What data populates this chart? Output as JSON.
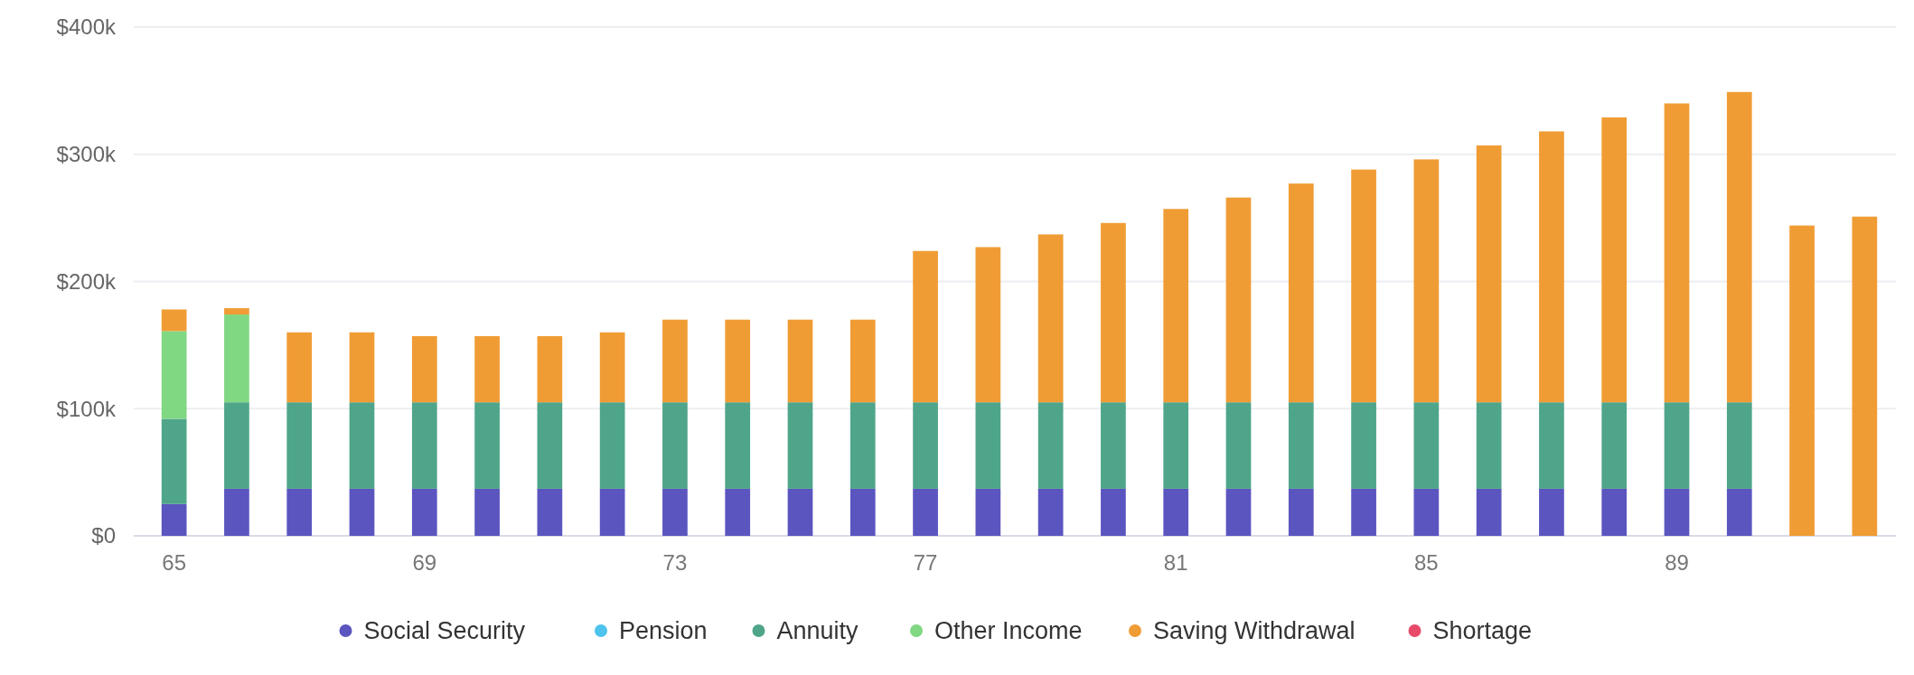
{
  "chart_data": {
    "type": "bar",
    "stacked": true,
    "grid": "y",
    "legend": "bottom",
    "marker": "circle",
    "categories": [
      "65",
      null,
      null,
      null,
      "69",
      null,
      null,
      null,
      "73",
      null,
      null,
      null,
      "77",
      null,
      null,
      null,
      "81",
      null,
      null,
      null,
      "85",
      null,
      null,
      null,
      "89",
      null,
      null,
      null
    ],
    "ylim": [
      0,
      400000
    ],
    "yticks": [
      {
        "value": 0,
        "label": "$0"
      },
      {
        "value": 100000,
        "label": "$100k"
      },
      {
        "value": 200000,
        "label": "$200k"
      },
      {
        "value": 300000,
        "label": "$300k"
      },
      {
        "value": 400000,
        "label": "$400k"
      }
    ],
    "series": [
      {
        "name": "Social Security",
        "color": "#5b55c0",
        "values": [
          25000,
          37000,
          37000,
          37000,
          37000,
          37000,
          37000,
          37000,
          37000,
          37000,
          37000,
          37000,
          37000,
          37000,
          37000,
          37000,
          37000,
          37000,
          37000,
          37000,
          37000,
          37000,
          37000,
          37000,
          37000,
          37000,
          0,
          0
        ]
      },
      {
        "name": "Pension",
        "color": "#4dc3ee",
        "values": [
          0,
          0,
          0,
          0,
          0,
          0,
          0,
          0,
          0,
          0,
          0,
          0,
          0,
          0,
          0,
          0,
          0,
          0,
          0,
          0,
          0,
          0,
          0,
          0,
          0,
          0,
          0,
          0
        ]
      },
      {
        "name": "Annuity",
        "color": "#4fa58a",
        "values": [
          67000,
          68000,
          68000,
          68000,
          68000,
          68000,
          68000,
          68000,
          68000,
          68000,
          68000,
          68000,
          68000,
          68000,
          68000,
          68000,
          68000,
          68000,
          68000,
          68000,
          68000,
          68000,
          68000,
          68000,
          68000,
          68000,
          0,
          0
        ]
      },
      {
        "name": "Other Income",
        "color": "#80d882",
        "values": [
          69000,
          69000,
          0,
          0,
          0,
          0,
          0,
          0,
          0,
          0,
          0,
          0,
          0,
          0,
          0,
          0,
          0,
          0,
          0,
          0,
          0,
          0,
          0,
          0,
          0,
          0,
          0,
          0
        ]
      },
      {
        "name": "Saving Withdrawal",
        "color": "#f09c35",
        "values": [
          17000,
          5000,
          55000,
          55000,
          52000,
          52000,
          52000,
          55000,
          65000,
          65000,
          65000,
          65000,
          119000,
          122000,
          132000,
          141000,
          152000,
          161000,
          172000,
          183000,
          191000,
          202000,
          213000,
          224000,
          235000,
          244000,
          244000,
          251000
        ]
      },
      {
        "name": "Shortage",
        "color": "#e84a6a",
        "values": [
          0,
          0,
          0,
          0,
          0,
          0,
          0,
          0,
          0,
          0,
          0,
          0,
          0,
          0,
          0,
          0,
          0,
          0,
          0,
          0,
          0,
          0,
          0,
          0,
          0,
          0,
          0,
          0
        ]
      }
    ]
  }
}
